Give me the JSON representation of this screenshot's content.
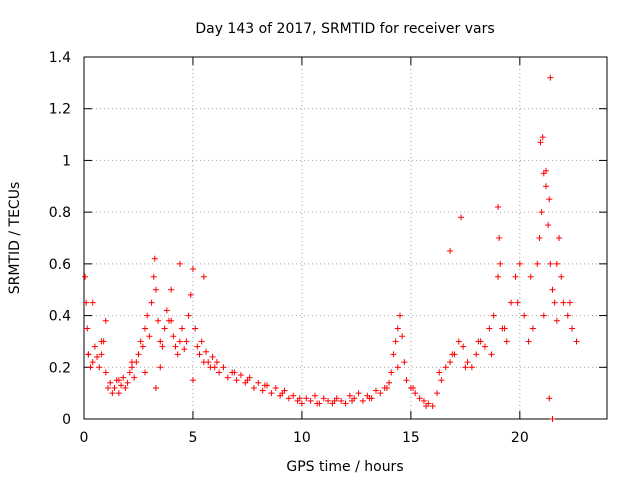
{
  "chart_data": {
    "type": "scatter",
    "title": "Day 143 of 2017, SRMTID for receiver vars",
    "xlabel": "GPS time / hours",
    "ylabel": "SRMTID / TECUs",
    "xlim": [
      0,
      24
    ],
    "ylim": [
      0,
      1.4
    ],
    "x_ticks": [
      0,
      5,
      10,
      15,
      20
    ],
    "y_ticks": [
      0,
      0.2,
      0.4,
      0.6,
      0.8,
      1,
      1.2,
      1.4
    ],
    "x_tick_labels": [
      "0",
      "5",
      "10",
      "15",
      "20"
    ],
    "y_tick_labels": [
      "0",
      "0.2",
      "0.4",
      "0.6",
      "0.8",
      "1",
      "1.2",
      "1.4"
    ],
    "grid": true,
    "marker": "+",
    "series": [
      {
        "name": "SRMTID",
        "color": "#ff0000",
        "x": [
          0.05,
          0.1,
          0.15,
          0.2,
          0.3,
          0.4,
          0.5,
          0.6,
          0.7,
          0.8,
          0.9,
          1.0,
          1.1,
          1.2,
          1.3,
          1.4,
          1.5,
          1.6,
          1.7,
          1.8,
          1.9,
          2.0,
          2.1,
          2.2,
          2.3,
          2.4,
          2.5,
          2.6,
          2.7,
          2.8,
          2.9,
          3.0,
          3.1,
          3.2,
          3.25,
          3.3,
          3.4,
          3.5,
          3.6,
          3.7,
          3.8,
          3.9,
          4.0,
          4.1,
          4.2,
          4.3,
          4.4,
          4.5,
          4.6,
          4.7,
          4.8,
          4.9,
          5.0,
          5.1,
          5.2,
          5.3,
          5.4,
          5.5,
          5.6,
          5.7,
          5.8,
          5.9,
          6.0,
          6.2,
          6.4,
          6.6,
          6.8,
          7.0,
          7.2,
          7.4,
          7.6,
          7.8,
          8.0,
          8.2,
          8.4,
          8.6,
          8.8,
          9.0,
          9.2,
          9.4,
          9.6,
          9.8,
          10.0,
          10.2,
          10.4,
          10.6,
          10.8,
          11.0,
          11.2,
          11.4,
          11.6,
          11.8,
          12.0,
          12.2,
          12.4,
          12.6,
          12.8,
          13.0,
          13.2,
          13.4,
          13.6,
          13.8,
          14.0,
          14.1,
          14.2,
          14.3,
          14.4,
          14.5,
          14.6,
          14.7,
          14.8,
          15.0,
          15.2,
          15.4,
          15.6,
          15.8,
          16.0,
          16.2,
          16.4,
          16.6,
          16.8,
          17.0,
          17.2,
          17.4,
          17.6,
          17.8,
          18.0,
          18.2,
          18.4,
          18.6,
          18.8,
          19.0,
          19.1,
          19.2,
          19.4,
          19.6,
          19.8,
          20.0,
          20.2,
          20.4,
          20.6,
          20.8,
          20.9,
          21.0,
          21.1,
          21.2,
          21.3,
          21.4,
          21.5,
          21.6,
          21.7,
          21.8,
          21.9,
          22.0,
          22.2,
          22.4,
          22.6,
          0.2,
          0.4,
          0.8,
          1.0,
          1.6,
          2.2,
          2.8,
          3.3,
          3.5,
          4.0,
          4.4,
          5.0,
          5.5,
          6.1,
          6.9,
          7.5,
          8.3,
          9.1,
          9.9,
          10.7,
          11.5,
          12.3,
          13.1,
          13.9,
          14.4,
          15.1,
          15.7,
          16.3,
          16.9,
          17.5,
          18.1,
          18.7,
          19.3,
          19.9,
          20.5,
          21.1,
          21.7,
          22.3,
          16.8,
          17.3,
          19.0,
          19.05,
          21.35,
          21.4,
          21.35,
          20.95,
          21.05,
          21.2,
          21.5
        ],
        "y": [
          0.55,
          0.45,
          0.35,
          0.25,
          0.2,
          0.22,
          0.28,
          0.24,
          0.2,
          0.25,
          0.3,
          0.18,
          0.12,
          0.14,
          0.1,
          0.12,
          0.15,
          0.1,
          0.13,
          0.16,
          0.12,
          0.14,
          0.18,
          0.2,
          0.16,
          0.22,
          0.25,
          0.3,
          0.28,
          0.35,
          0.4,
          0.32,
          0.45,
          0.55,
          0.62,
          0.5,
          0.38,
          0.3,
          0.28,
          0.35,
          0.42,
          0.38,
          0.5,
          0.32,
          0.28,
          0.25,
          0.3,
          0.35,
          0.27,
          0.3,
          0.4,
          0.48,
          0.58,
          0.35,
          0.28,
          0.25,
          0.3,
          0.22,
          0.26,
          0.22,
          0.2,
          0.24,
          0.2,
          0.18,
          0.2,
          0.16,
          0.18,
          0.15,
          0.17,
          0.14,
          0.16,
          0.12,
          0.14,
          0.11,
          0.13,
          0.1,
          0.12,
          0.09,
          0.11,
          0.08,
          0.09,
          0.07,
          0.06,
          0.08,
          0.07,
          0.09,
          0.06,
          0.08,
          0.07,
          0.06,
          0.08,
          0.07,
          0.06,
          0.09,
          0.08,
          0.1,
          0.07,
          0.09,
          0.08,
          0.11,
          0.1,
          0.12,
          0.14,
          0.18,
          0.25,
          0.3,
          0.35,
          0.4,
          0.32,
          0.22,
          0.15,
          0.12,
          0.1,
          0.08,
          0.07,
          0.06,
          0.05,
          0.1,
          0.15,
          0.2,
          0.22,
          0.25,
          0.3,
          0.28,
          0.22,
          0.2,
          0.25,
          0.3,
          0.28,
          0.35,
          0.4,
          0.55,
          0.6,
          0.35,
          0.3,
          0.45,
          0.55,
          0.6,
          0.4,
          0.3,
          0.35,
          0.6,
          0.7,
          0.8,
          0.95,
          0.9,
          0.75,
          0.6,
          0.5,
          0.45,
          0.6,
          0.7,
          0.55,
          0.45,
          0.4,
          0.35,
          0.3,
          0.25,
          0.45,
          0.3,
          0.38,
          0.15,
          0.22,
          0.18,
          0.12,
          0.2,
          0.38,
          0.6,
          0.15,
          0.55,
          0.22,
          0.18,
          0.15,
          0.13,
          0.1,
          0.08,
          0.06,
          0.07,
          0.07,
          0.08,
          0.12,
          0.2,
          0.12,
          0.05,
          0.18,
          0.25,
          0.2,
          0.3,
          0.25,
          0.35,
          0.45,
          0.55,
          0.4,
          0.38,
          0.45,
          0.65,
          0.78,
          0.82,
          0.7,
          0.85,
          1.32,
          0.08,
          1.07,
          1.09,
          0.96,
          0.0
        ]
      }
    ]
  }
}
